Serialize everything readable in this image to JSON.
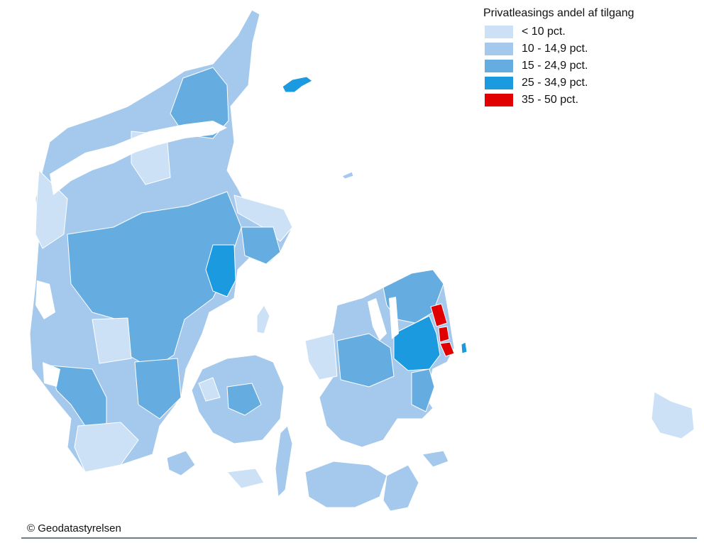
{
  "legend": {
    "title": "Privatleasings andel af tilgang",
    "classes": [
      {
        "label": "< 10 pct.",
        "color": "#cce1f6"
      },
      {
        "label": "10 - 14,9 pct.",
        "color": "#a4c9ec"
      },
      {
        "label": "15 - 24,9 pct.",
        "color": "#65ace0"
      },
      {
        "label": "25 - 34,9 pct.",
        "color": "#1b9ae0"
      },
      {
        "label": "35 - 50 pct.",
        "color": "#e00000"
      }
    ]
  },
  "attribution": "© Geodatastyrelsen",
  "map_colors": {
    "border": "#ffffff",
    "footer_rule": "#6b7f8e"
  }
}
